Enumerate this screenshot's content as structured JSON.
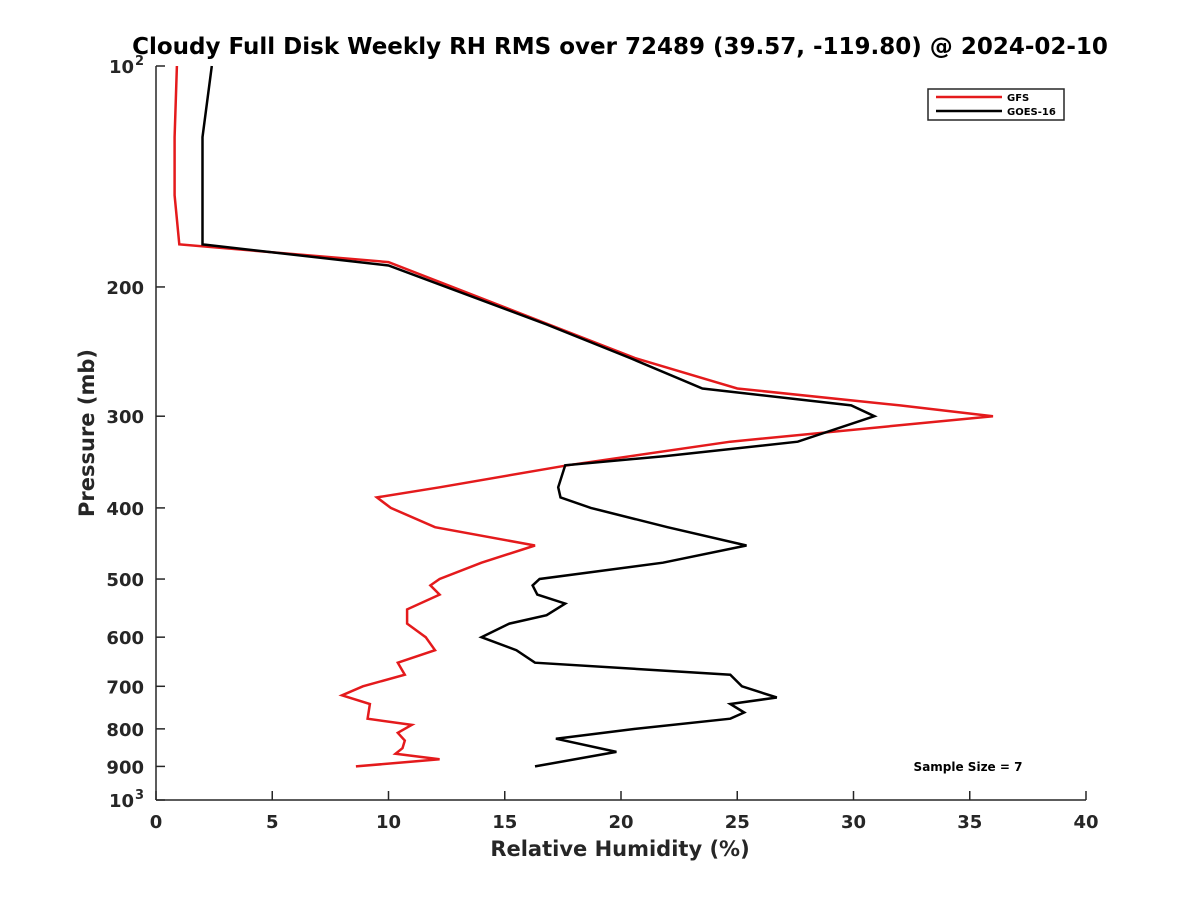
{
  "chart_data": {
    "type": "line",
    "title": "Cloudy Full Disk Weekly RH RMS over 72489 (39.57, -119.80) @ 2024-02-10",
    "xlabel": "Relative Humidity (%)",
    "ylabel": "Pressure (mb)",
    "xlim": [
      0,
      40
    ],
    "ylim": [
      100,
      1000
    ],
    "y_scale": "log",
    "y_reversed": true,
    "grid": false,
    "legend_position": "top-right",
    "x_ticks": [
      "0",
      "5",
      "10",
      "15",
      "20",
      "25",
      "30",
      "35",
      "40"
    ],
    "y_ticks": [
      {
        "value": 100,
        "base": "10",
        "exp": "2"
      },
      {
        "value": 200,
        "label": "200"
      },
      {
        "value": 300,
        "label": "300"
      },
      {
        "value": 400,
        "label": "400"
      },
      {
        "value": 500,
        "label": "500"
      },
      {
        "value": 600,
        "label": "600"
      },
      {
        "value": 700,
        "label": "700"
      },
      {
        "value": 800,
        "label": "800"
      },
      {
        "value": 900,
        "label": "900"
      },
      {
        "value": 1000,
        "base": "10",
        "exp": "3"
      }
    ],
    "annotation": "Sample Size = 7",
    "series": [
      {
        "name": "GFS",
        "color": "#e41a1c",
        "points": [
          [
            0.9,
            100
          ],
          [
            0.8,
            125
          ],
          [
            0.8,
            150
          ],
          [
            1.0,
            175
          ],
          [
            10.0,
            185
          ],
          [
            16.9,
            225
          ],
          [
            20.6,
            250
          ],
          [
            25.0,
            275
          ],
          [
            32.0,
            290
          ],
          [
            36.0,
            300
          ],
          [
            24.7,
            325
          ],
          [
            17.7,
            350
          ],
          [
            12.2,
            375
          ],
          [
            9.5,
            387
          ],
          [
            10.1,
            400
          ],
          [
            12.0,
            425
          ],
          [
            16.3,
            450
          ],
          [
            14.0,
            475
          ],
          [
            12.2,
            500
          ],
          [
            11.8,
            510
          ],
          [
            12.2,
            525
          ],
          [
            10.8,
            550
          ],
          [
            10.8,
            575
          ],
          [
            11.6,
            600
          ],
          [
            12.0,
            625
          ],
          [
            10.4,
            650
          ],
          [
            10.7,
            675
          ],
          [
            8.9,
            700
          ],
          [
            8.0,
            720
          ],
          [
            9.2,
            740
          ],
          [
            9.1,
            775
          ],
          [
            11.0,
            790
          ],
          [
            10.4,
            810
          ],
          [
            10.7,
            830
          ],
          [
            10.6,
            850
          ],
          [
            10.3,
            865
          ],
          [
            12.2,
            880
          ],
          [
            8.6,
            900
          ]
        ]
      },
      {
        "name": "GOES-16",
        "color": "#000000",
        "points": [
          [
            2.4,
            100
          ],
          [
            2.0,
            125
          ],
          [
            2.0,
            150
          ],
          [
            2.0,
            175
          ],
          [
            10.0,
            187
          ],
          [
            16.8,
            225
          ],
          [
            20.4,
            250
          ],
          [
            23.5,
            275
          ],
          [
            29.9,
            290
          ],
          [
            30.9,
            300
          ],
          [
            27.6,
            325
          ],
          [
            21.9,
            340
          ],
          [
            17.6,
            350
          ],
          [
            17.3,
            375
          ],
          [
            17.4,
            387
          ],
          [
            18.7,
            400
          ],
          [
            22.0,
            425
          ],
          [
            25.4,
            450
          ],
          [
            21.8,
            475
          ],
          [
            16.5,
            500
          ],
          [
            16.2,
            510
          ],
          [
            16.4,
            525
          ],
          [
            17.6,
            540
          ],
          [
            16.8,
            560
          ],
          [
            15.2,
            575
          ],
          [
            14.0,
            600
          ],
          [
            15.5,
            625
          ],
          [
            16.3,
            650
          ],
          [
            24.7,
            675
          ],
          [
            25.2,
            700
          ],
          [
            26.7,
            725
          ],
          [
            24.7,
            740
          ],
          [
            25.3,
            760
          ],
          [
            24.7,
            775
          ],
          [
            20.6,
            800
          ],
          [
            17.2,
            825
          ],
          [
            19.8,
            860
          ],
          [
            16.3,
            900
          ]
        ]
      }
    ]
  }
}
